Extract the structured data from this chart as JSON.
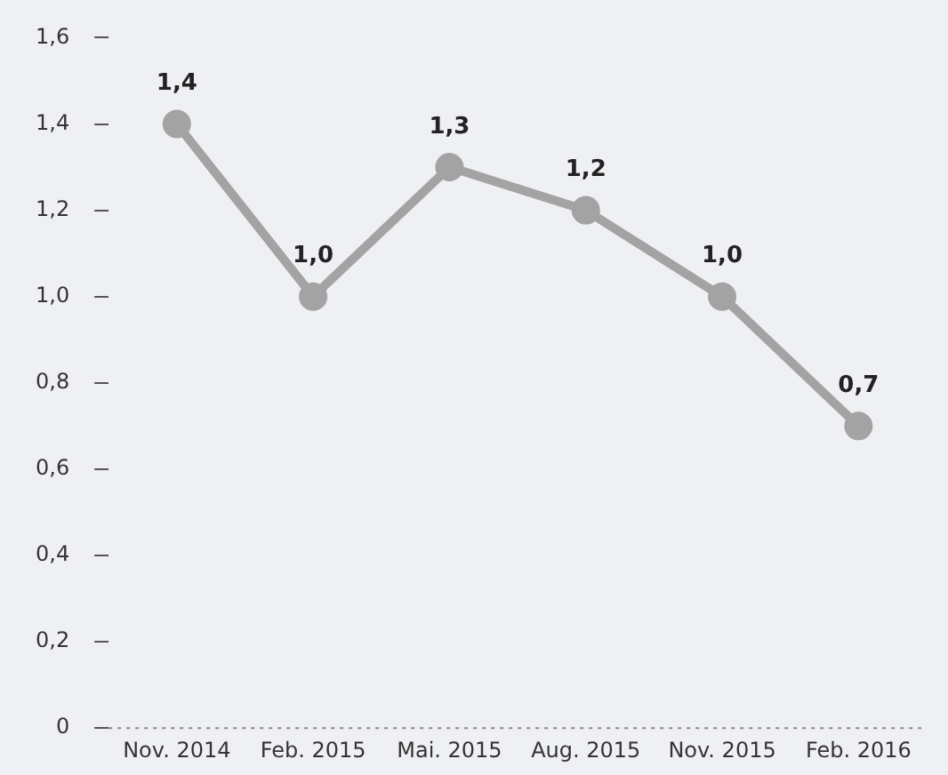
{
  "chart_data": {
    "type": "line",
    "categories": [
      "Nov. 2014",
      "Feb. 2015",
      "Mai. 2015",
      "Aug. 2015",
      "Nov. 2015",
      "Feb. 2016"
    ],
    "series": [
      {
        "color": "#a3a3a3",
        "values": [
          1.4,
          1.0,
          1.3,
          1.2,
          1.0,
          0.7
        ],
        "value_labels": [
          "1,4",
          "1,0",
          "1,3",
          "1,2",
          "1,0",
          "0,7"
        ]
      }
    ],
    "ylim": [
      0,
      1.6
    ],
    "yticks": [
      0,
      {
        "value": 0.2,
        "label": "0,2"
      },
      {
        "value": 0.4,
        "label": "0,4"
      },
      {
        "value": 0.6,
        "label": "0,6"
      },
      {
        "value": 0.8,
        "label": "0,8"
      },
      {
        "value": 1.0,
        "label": "1,0"
      },
      {
        "value": 1.2,
        "label": "1,2"
      },
      {
        "value": 1.4,
        "label": "1,4"
      },
      {
        "value": 1.6,
        "label": "1,6"
      }
    ],
    "grid": false,
    "legend": false,
    "marker": "circle",
    "line_style": "solid"
  }
}
